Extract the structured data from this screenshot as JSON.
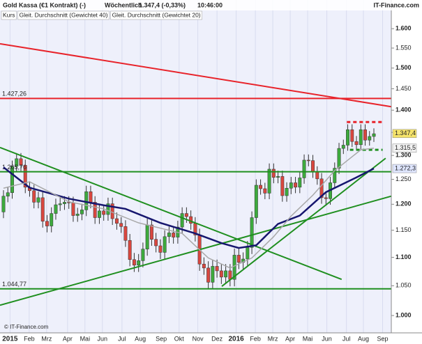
{
  "header": {
    "title": "Gold Kassa (€1 Kontrakt) (-)",
    "period": "Wöchentlich",
    "quote": "1.347,4 (-0,33%)",
    "time": "10:46:00",
    "brand": "IT-Finance.com"
  },
  "footer": "© IT-Finance.com",
  "chart_data": {
    "type": "candlestick",
    "log_y": true,
    "xlim": [
      -0.8,
      89
    ],
    "ylim": [
      972,
      1677
    ],
    "yticks": [
      {
        "value": 1000,
        "label": "1.000"
      },
      {
        "value": 1050,
        "label": "1.050"
      },
      {
        "value": 1100,
        "label": "1.100"
      },
      {
        "value": 1150,
        "label": "1.150"
      },
      {
        "value": 1200,
        "label": "1.200"
      },
      {
        "value": 1250,
        "label": "1.250"
      },
      {
        "value": 1300,
        "label": "1.300"
      },
      {
        "value": 1350,
        "label": "1.350"
      },
      {
        "value": 1400,
        "label": "1.400"
      },
      {
        "value": 1450,
        "label": "1.450"
      },
      {
        "value": 1500,
        "label": "1.500"
      },
      {
        "value": 1550,
        "label": "1.550"
      },
      {
        "value": 1600,
        "label": "1.600"
      }
    ],
    "xticks": [
      {
        "value": 1.5,
        "label": "2015"
      },
      {
        "value": 5.9,
        "label": "Feb"
      },
      {
        "value": 9.9,
        "label": "Mrz"
      },
      {
        "value": 14.7,
        "label": "Apr"
      },
      {
        "value": 18.7,
        "label": "Mai"
      },
      {
        "value": 22.7,
        "label": "Jun"
      },
      {
        "value": 27.2,
        "label": "Jul"
      },
      {
        "value": 31.4,
        "label": "Aug"
      },
      {
        "value": 36.2,
        "label": "Sep"
      },
      {
        "value": 40.3,
        "label": "Okt"
      },
      {
        "value": 44.6,
        "label": "Nov"
      },
      {
        "value": 49,
        "label": "Dez"
      },
      {
        "value": 53.4,
        "label": "2016"
      },
      {
        "value": 57.8,
        "label": "Feb"
      },
      {
        "value": 61.8,
        "label": "Mrz"
      },
      {
        "value": 65.8,
        "label": "Apr"
      },
      {
        "value": 69.8,
        "label": "Mai"
      },
      {
        "value": 74.2,
        "label": "Jun"
      },
      {
        "value": 78.7,
        "label": "Jul"
      },
      {
        "value": 82.6,
        "label": "Aug"
      },
      {
        "value": 87,
        "label": "Sep"
      }
    ],
    "candles": {
      "name": "Kurs",
      "up_color": "#3daa3d",
      "down_color": "#d9473f",
      "last": {
        "value": 1347.4,
        "label": "1.347,4"
      },
      "open": [
        1185,
        1216,
        1223,
        1277,
        1293,
        1279,
        1234,
        1227,
        1204,
        1213,
        1167,
        1158,
        1182,
        1199,
        1201,
        1204,
        1203,
        1178,
        1181,
        1189,
        1225,
        1204,
        1174,
        1187,
        1180,
        1201,
        1172,
        1163,
        1157,
        1131,
        1096,
        1086,
        1094,
        1115,
        1160,
        1133,
        1121,
        1109,
        1138,
        1145,
        1137,
        1156,
        1182,
        1176,
        1163,
        1141,
        1088,
        1081,
        1056,
        1084,
        1076,
        1065,
        1076,
        1061,
        1104,
        1091,
        1097,
        1118,
        1174,
        1238,
        1231,
        1222,
        1271,
        1254,
        1256,
        1217,
        1232,
        1243,
        1234,
        1253,
        1290,
        1289,
        1265,
        1251,
        1213,
        1211,
        1243,
        1273,
        1315,
        1322,
        1356,
        1330,
        1323,
        1356,
        1333,
        1341
      ],
      "high": [
        1228,
        1235,
        1289,
        1305,
        1305,
        1291,
        1246,
        1239,
        1225,
        1225,
        1179,
        1194,
        1211,
        1213,
        1216,
        1216,
        1215,
        1193,
        1201,
        1237,
        1237,
        1216,
        1199,
        1199,
        1213,
        1213,
        1184,
        1175,
        1169,
        1143,
        1108,
        1106,
        1127,
        1172,
        1172,
        1145,
        1133,
        1150,
        1157,
        1157,
        1168,
        1194,
        1194,
        1188,
        1175,
        1153,
        1100,
        1093,
        1096,
        1096,
        1088,
        1088,
        1088,
        1116,
        1116,
        1109,
        1130,
        1186,
        1250,
        1250,
        1243,
        1283,
        1283,
        1268,
        1268,
        1244,
        1255,
        1255,
        1265,
        1302,
        1302,
        1301,
        1277,
        1263,
        1225,
        1255,
        1285,
        1327,
        1334,
        1368,
        1368,
        1342,
        1368,
        1368,
        1353,
        1359
      ],
      "low": [
        1173,
        1204,
        1211,
        1265,
        1267,
        1222,
        1215,
        1192,
        1192,
        1155,
        1146,
        1146,
        1170,
        1187,
        1189,
        1191,
        1166,
        1166,
        1169,
        1177,
        1192,
        1162,
        1162,
        1168,
        1168,
        1160,
        1151,
        1145,
        1119,
        1084,
        1074,
        1074,
        1082,
        1103,
        1121,
        1109,
        1097,
        1097,
        1126,
        1125,
        1125,
        1144,
        1164,
        1151,
        1129,
        1076,
        1069,
        1044,
        1044,
        1064,
        1053,
        1053,
        1049,
        1049,
        1079,
        1079,
        1085,
        1106,
        1162,
        1219,
        1210,
        1210,
        1242,
        1242,
        1205,
        1205,
        1220,
        1222,
        1222,
        1241,
        1277,
        1253,
        1239,
        1201,
        1199,
        1199,
        1231,
        1261,
        1303,
        1310,
        1318,
        1311,
        1311,
        1321,
        1321,
        1329
      ],
      "close": [
        1216,
        1223,
        1277,
        1293,
        1279,
        1234,
        1227,
        1204,
        1213,
        1167,
        1158,
        1182,
        1199,
        1201,
        1204,
        1203,
        1178,
        1181,
        1189,
        1225,
        1204,
        1174,
        1187,
        1180,
        1201,
        1172,
        1163,
        1157,
        1131,
        1096,
        1086,
        1094,
        1115,
        1160,
        1133,
        1121,
        1109,
        1138,
        1145,
        1137,
        1156,
        1182,
        1176,
        1163,
        1141,
        1088,
        1081,
        1056,
        1084,
        1076,
        1065,
        1076,
        1061,
        1104,
        1091,
        1097,
        1118,
        1174,
        1238,
        1231,
        1222,
        1271,
        1254,
        1256,
        1217,
        1232,
        1243,
        1234,
        1253,
        1290,
        1289,
        1265,
        1251,
        1213,
        1211,
        1243,
        1273,
        1315,
        1322,
        1356,
        1330,
        1323,
        1356,
        1333,
        1341,
        1347
      ]
    },
    "series": [
      {
        "name": "Gleit. Durchschnitt (Gewichtet 40)",
        "color": "#16166e",
        "x": [
          0,
          6,
          15,
          23,
          28,
          36,
          44,
          50,
          54,
          58,
          63,
          68,
          74,
          81,
          85
        ],
        "values": [
          1275,
          1233,
          1211,
          1198,
          1191,
          1164,
          1144,
          1126,
          1117,
          1122,
          1162,
          1178,
          1224,
          1254,
          1272.3
        ],
        "last": {
          "value": 1272.3,
          "label": "1.272,3"
        }
      },
      {
        "name": "Gleit. Durchschnitt (Gewichtet 20)",
        "color": "#a8a8a8",
        "x": [
          0,
          6,
          15,
          23,
          31,
          41,
          47,
          52,
          57,
          62,
          66,
          71,
          76,
          82,
          85
        ],
        "values": [
          1232,
          1245,
          1205,
          1191,
          1164,
          1144,
          1099,
          1081,
          1099,
          1138,
          1177,
          1218,
          1268,
          1312,
          1315.5
        ],
        "last": {
          "value": 1315.5,
          "label": "1.315,5"
        }
      }
    ],
    "hlines": [
      {
        "value": 1427.26,
        "label": "1.427,26",
        "color": "#e8232a"
      },
      {
        "value": 1265.76,
        "label": "1.265,76",
        "color": "#1f8f1f"
      },
      {
        "value": 1044.77,
        "label": "1.044,77",
        "color": "#1f8f1f"
      }
    ],
    "trendlines": [
      {
        "color": "#e8232a",
        "dashed": false,
        "x": [
          -0.8,
          89
        ],
        "values": [
          1561,
          1408
        ]
      },
      {
        "color": "#1f8f1f",
        "dashed": false,
        "x": [
          -0.8,
          77.6
        ],
        "values": [
          1317,
          1061
        ]
      },
      {
        "color": "#1f8f1f",
        "dashed": false,
        "x": [
          -0.8,
          89
        ],
        "values": [
          1017,
          1216
        ]
      },
      {
        "color": "#1f8f1f",
        "dashed": false,
        "x": [
          50.1,
          87.7
        ],
        "values": [
          1049,
          1294
        ]
      },
      {
        "color": "#e8232a",
        "dashed": true,
        "x": [
          78.8,
          87
        ],
        "values": [
          1373,
          1373
        ]
      },
      {
        "color": "#1f8f1f",
        "dashed": true,
        "x": [
          79.5,
          87
        ],
        "values": [
          1312,
          1312
        ]
      }
    ]
  }
}
